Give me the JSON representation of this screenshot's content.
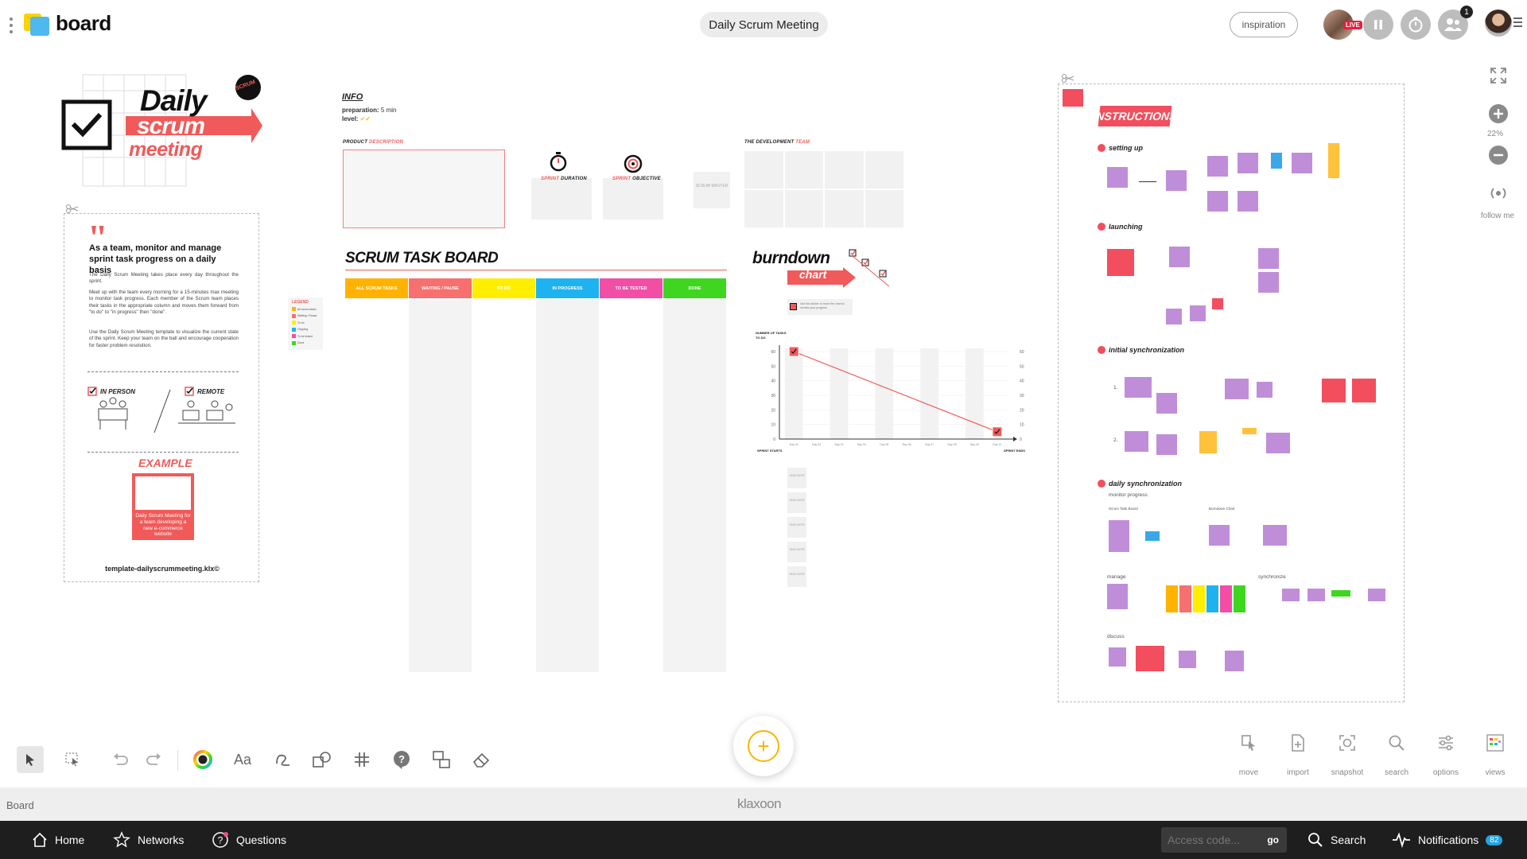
{
  "app": {
    "name": "board"
  },
  "header": {
    "board_title": "Daily Scrum Meeting",
    "inspiration_label": "inspiration",
    "live_label": "LIVE",
    "notification_count": "1"
  },
  "zoom": {
    "level": "22%",
    "follow_label": "follow me"
  },
  "left_card": {
    "title_daily": "Daily",
    "title_scrum": "scrum",
    "title_meeting": "meeting",
    "badge": "SCRUM",
    "heading": "As a team, monitor and manage sprint task progress on a daily basis",
    "para1": "The Daily Scrum Meeting takes place every day throughout the sprint.",
    "para2": "Meet up with the team every morning for a 15-minutes max meeting to monitor task progress. Each member of the Scrum team places their tasks in the appropriate column and moves them forward from \"to do\" to \"in progress\" then \"done\".",
    "para3": "Use the Daily Scrum Meeting template to visualize the current state of the sprint. Keep your team on the ball and encourage cooperation for faster problem resolution.",
    "in_person": "IN PERSON",
    "remote": "REMOTE",
    "example_label": "EXAMPLE",
    "example_text": "Daily Scrum Meeting for a team developing a new e-commerce website",
    "footer": "template-dailyscrummeeting.klx©"
  },
  "info": {
    "title": "INFO",
    "prep_label": "preparation:",
    "prep_value": "5 min",
    "level_label": "level:",
    "product_desc_1": "PRODUCT",
    "product_desc_2": "DESCRIPTION",
    "sprint_duration_1": "SPRINT",
    "sprint_duration_2": "DURATION",
    "sprint_objective_1": "SPRINT",
    "sprint_objective_2": "OBJECTIVE",
    "scrum_master": "SCRUM MASTER",
    "dev_team_1": "THE DEVELOPMENT",
    "dev_team_2": "TEAM"
  },
  "task_board": {
    "title": "SCRUM TASK BOARD",
    "columns": [
      {
        "label": "ALL SCRUM TASKS",
        "color": "#ffb300"
      },
      {
        "label": "WAITING / PAUSE",
        "color": "#f86f6f"
      },
      {
        "label": "TO DO",
        "color": "#ffee00"
      },
      {
        "label": "IN PROGRESS",
        "color": "#1eb3f0"
      },
      {
        "label": "TO BE TESTED",
        "color": "#f24ea6"
      },
      {
        "label": "DONE",
        "color": "#3fd61f"
      }
    ]
  },
  "legend": {
    "title": "LEGEND",
    "items": [
      {
        "label": "All scrum tasks",
        "color": "#ffb300"
      },
      {
        "label": "Waiting / Pause",
        "color": "#f86f6f"
      },
      {
        "label": "To do",
        "color": "#ffee00"
      },
      {
        "label": "Ongoing",
        "color": "#1eb3f0"
      },
      {
        "label": "To be tested",
        "color": "#f24ea6"
      },
      {
        "label": "Done",
        "color": "#3fd61f"
      }
    ]
  },
  "burndown": {
    "title_1": "burndown",
    "title_2": "chart",
    "note": "Use this sticker to move the chart to monitor your progress",
    "task_note_label": "TASK NOTE"
  },
  "chart_data": {
    "type": "line",
    "ylabel": "NUMBER OF TASKS TO DO",
    "x_start_label": "SPRINT STARTS",
    "x_end_label": "SPRINT ENDS",
    "ylim": [
      0,
      60
    ],
    "yticks": [
      0,
      10,
      20,
      30,
      40,
      50,
      60
    ],
    "categories": [
      "Day 01",
      "Day 02",
      "Day 03",
      "Day 04",
      "Day 05",
      "Day 06",
      "Day 07",
      "Day 08",
      "Day 09",
      "Day 10"
    ],
    "series": [
      {
        "values": [
          60,
          null,
          null,
          null,
          null,
          null,
          null,
          null,
          null,
          5
        ]
      }
    ],
    "grid": true
  },
  "instructions": {
    "title": "INSTRUCTIONS",
    "step1": "setting up",
    "step2": "launching",
    "step3": "initial synchronization",
    "step4": "daily synchronization",
    "step4_sub": "monitor progress",
    "manage": "manage",
    "synchronize": "synchronize",
    "discuss": "discuss",
    "sub_task_board": "Scrum Task Board",
    "sub_burndown": "Burndown Chart",
    "num_1": "1.",
    "num_2": "2."
  },
  "toolbar_right": {
    "move": "move",
    "import": "import",
    "snapshot": "snapshot",
    "search": "search",
    "options": "options",
    "views": "views"
  },
  "strip": {
    "board_label": "Board",
    "brand": "klaxoon"
  },
  "footer": {
    "home": "Home",
    "networks": "Networks",
    "questions": "Questions",
    "access_placeholder": "Access code...",
    "go": "go",
    "search": "Search",
    "notifications": "Notifications",
    "notifications_count": "82"
  }
}
